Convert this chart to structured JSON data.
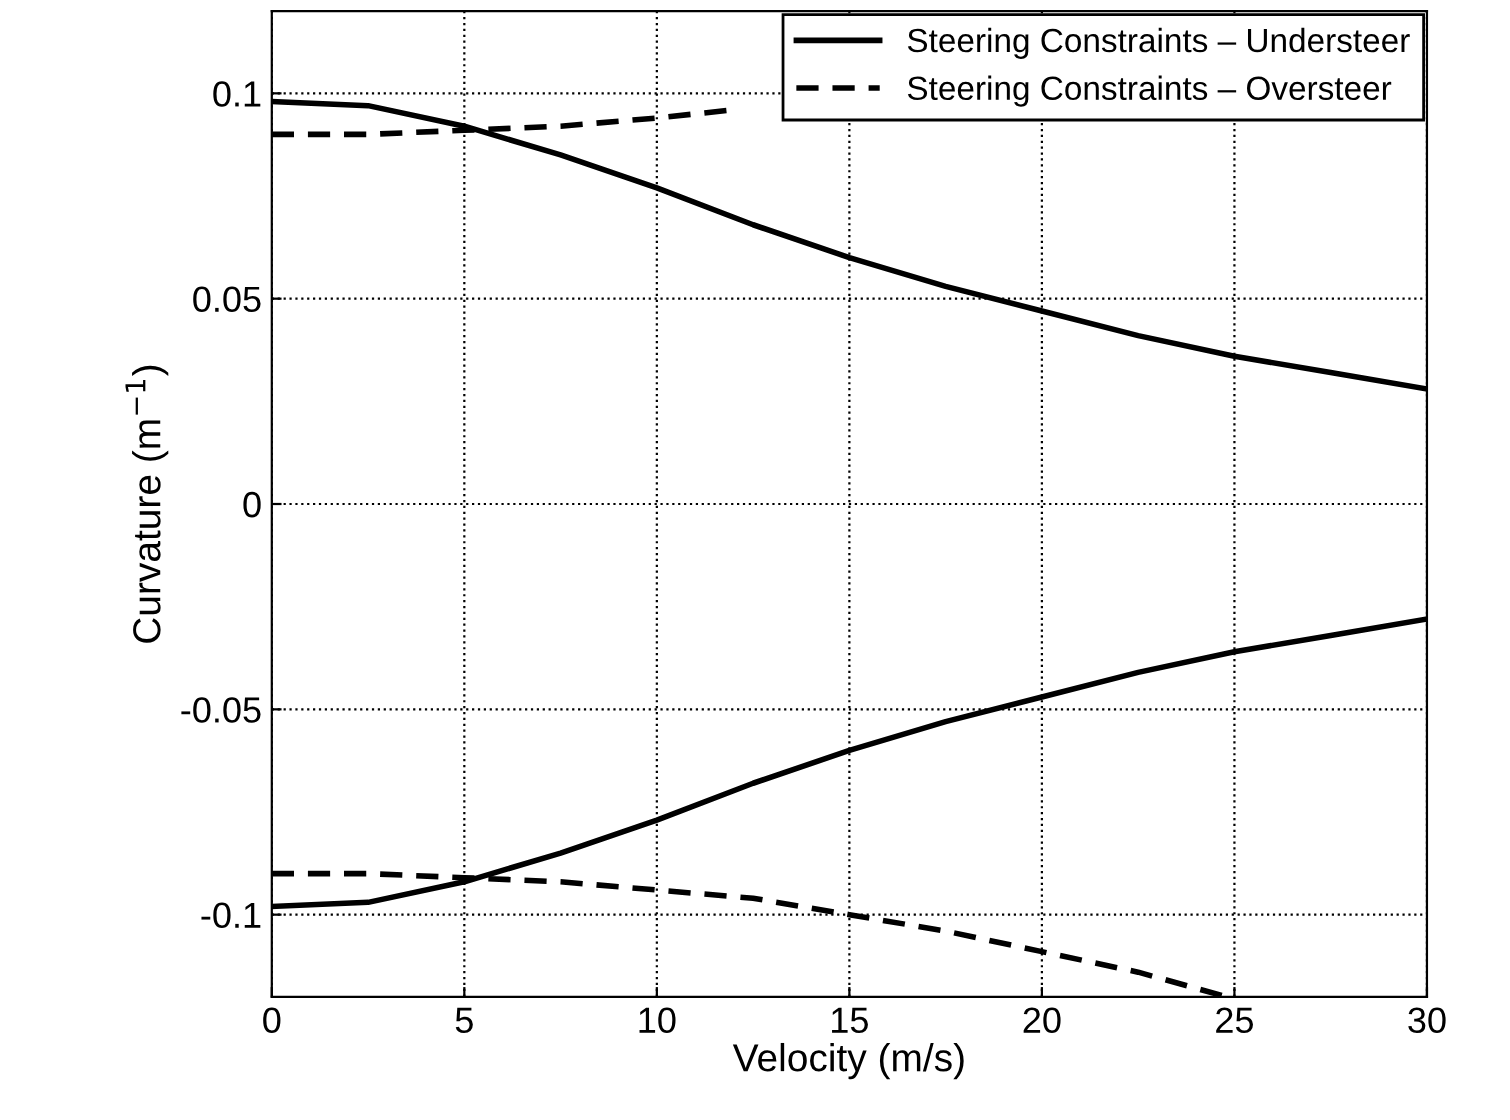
{
  "chart_data": {
    "type": "line",
    "xlabel": "Velocity (m/s)",
    "ylabel": "Curvature (m$^{−1}$)",
    "xlim": [
      0,
      30
    ],
    "ylim": [
      -0.12,
      0.12
    ],
    "xticks": [
      0,
      5,
      10,
      15,
      20,
      25,
      30
    ],
    "yticks": [
      -0.1,
      -0.05,
      0,
      0.05,
      0.1
    ],
    "grid": true,
    "legend": "top right",
    "marker": "none",
    "series": [
      {
        "name": "Steering Constraints – Understeer",
        "color": "#000000",
        "line_style": "solid",
        "x": [
          0,
          2.5,
          5,
          7.5,
          10,
          12.5,
          15,
          17.5,
          20,
          22.5,
          25,
          27.5,
          30
        ],
        "values": [
          0.098,
          0.097,
          0.092,
          0.085,
          0.077,
          0.068,
          0.06,
          0.053,
          0.047,
          0.041,
          0.036,
          0.032,
          0.028
        ]
      },
      {
        "name": "Steering Constraints – Oversteer",
        "color": "#000000",
        "line_style": "dashed",
        "x": [
          0,
          2.5,
          5,
          7.5,
          10,
          12
        ],
        "values": [
          0.09,
          0.09,
          0.091,
          0.092,
          0.094,
          0.096
        ]
      },
      {
        "color": "#000000",
        "line_style": "solid",
        "x": [
          0,
          2.5,
          5,
          7.5,
          10,
          12.5,
          15,
          17.5,
          20,
          22.5,
          25,
          27.5,
          30
        ],
        "values": [
          -0.098,
          -0.097,
          -0.092,
          -0.085,
          -0.077,
          -0.068,
          -0.06,
          -0.053,
          -0.047,
          -0.041,
          -0.036,
          -0.032,
          -0.028
        ]
      },
      {
        "color": "#000000",
        "line_style": "dashed",
        "x": [
          0,
          2.5,
          5,
          7.5,
          10,
          12.5,
          15,
          17.5,
          20,
          22.5,
          24.8
        ],
        "values": [
          -0.09,
          -0.09,
          -0.091,
          -0.092,
          -0.094,
          -0.096,
          -0.1,
          -0.104,
          -0.109,
          -0.114,
          -0.12
        ]
      }
    ]
  }
}
